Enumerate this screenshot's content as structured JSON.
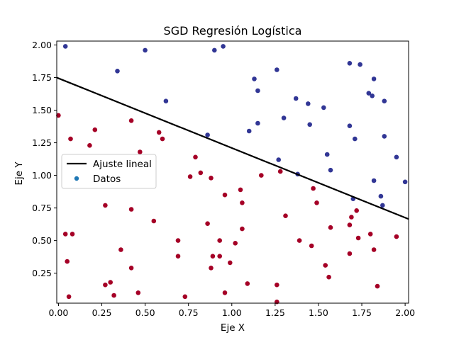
{
  "chart_data": {
    "type": "scatter",
    "title": "SGD Regresión Logística",
    "xlabel": "Eje X",
    "ylabel": "Eje Y",
    "xlim": [
      -0.01,
      2.02
    ],
    "ylim": [
      0.02,
      2.03
    ],
    "xticks": [
      "0.00",
      "0.25",
      "0.50",
      "0.75",
      "1.00",
      "1.25",
      "1.50",
      "1.75",
      "2.00"
    ],
    "yticks": [
      "0.25",
      "0.50",
      "0.75",
      "1.00",
      "1.25",
      "1.50",
      "1.75",
      "2.00"
    ],
    "grid": false,
    "legend_position": "center-left",
    "legend": {
      "line_label": "Ajuste lineal",
      "points_label": "Datos"
    },
    "colors": {
      "class_0": "#a50026",
      "class_1": "#313695",
      "fit_line": "#000000",
      "legend_marker": "#1f77b4"
    },
    "fit_line": {
      "x": [
        -0.01,
        2.02
      ],
      "y": [
        1.75,
        0.665
      ]
    },
    "series": [
      {
        "class": 0,
        "points": [
          [
            0.0,
            1.46
          ],
          [
            0.07,
            1.28
          ],
          [
            0.21,
            1.35
          ],
          [
            0.18,
            1.23
          ],
          [
            0.42,
            1.42
          ],
          [
            0.58,
            1.33
          ],
          [
            0.6,
            1.28
          ],
          [
            0.47,
            1.18
          ],
          [
            0.79,
            1.14
          ],
          [
            0.82,
            1.02
          ],
          [
            0.76,
            0.99
          ],
          [
            0.88,
            0.98
          ],
          [
            1.17,
            1.0
          ],
          [
            1.28,
            1.03
          ],
          [
            0.96,
            0.85
          ],
          [
            1.05,
            0.89
          ],
          [
            1.06,
            0.79
          ],
          [
            1.47,
            0.9
          ],
          [
            1.49,
            0.79
          ],
          [
            0.27,
            0.77
          ],
          [
            0.42,
            0.74
          ],
          [
            0.04,
            0.55
          ],
          [
            0.08,
            0.55
          ],
          [
            0.55,
            0.65
          ],
          [
            0.86,
            0.63
          ],
          [
            1.06,
            0.59
          ],
          [
            1.31,
            0.69
          ],
          [
            1.57,
            0.6
          ],
          [
            1.68,
            0.62
          ],
          [
            1.69,
            0.68
          ],
          [
            1.72,
            0.73
          ],
          [
            1.73,
            0.52
          ],
          [
            1.8,
            0.55
          ],
          [
            1.95,
            0.53
          ],
          [
            0.69,
            0.5
          ],
          [
            0.93,
            0.5
          ],
          [
            1.02,
            0.48
          ],
          [
            1.39,
            0.5
          ],
          [
            1.46,
            0.46
          ],
          [
            0.36,
            0.43
          ],
          [
            0.69,
            0.38
          ],
          [
            0.89,
            0.38
          ],
          [
            0.93,
            0.38
          ],
          [
            1.68,
            0.4
          ],
          [
            1.82,
            0.43
          ],
          [
            0.05,
            0.34
          ],
          [
            0.42,
            0.29
          ],
          [
            0.88,
            0.29
          ],
          [
            0.99,
            0.33
          ],
          [
            1.54,
            0.31
          ],
          [
            1.56,
            0.22
          ],
          [
            0.27,
            0.16
          ],
          [
            0.3,
            0.18
          ],
          [
            1.09,
            0.17
          ],
          [
            1.26,
            0.16
          ],
          [
            1.84,
            0.15
          ],
          [
            0.06,
            0.07
          ],
          [
            0.32,
            0.08
          ],
          [
            0.46,
            0.1
          ],
          [
            0.73,
            0.07
          ],
          [
            0.96,
            0.1
          ],
          [
            1.26,
            0.03
          ]
        ]
      },
      {
        "class": 1,
        "points": [
          [
            0.04,
            1.99
          ],
          [
            0.5,
            1.96
          ],
          [
            0.9,
            1.96
          ],
          [
            0.95,
            1.99
          ],
          [
            0.34,
            1.8
          ],
          [
            1.26,
            1.81
          ],
          [
            1.13,
            1.74
          ],
          [
            1.68,
            1.86
          ],
          [
            1.74,
            1.85
          ],
          [
            1.82,
            1.74
          ],
          [
            1.15,
            1.65
          ],
          [
            1.37,
            1.59
          ],
          [
            1.44,
            1.55
          ],
          [
            1.53,
            1.52
          ],
          [
            0.62,
            1.57
          ],
          [
            1.79,
            1.63
          ],
          [
            1.81,
            1.61
          ],
          [
            1.88,
            1.57
          ],
          [
            1.3,
            1.44
          ],
          [
            1.15,
            1.4
          ],
          [
            1.45,
            1.39
          ],
          [
            1.68,
            1.38
          ],
          [
            1.1,
            1.34
          ],
          [
            0.86,
            1.31
          ],
          [
            1.71,
            1.28
          ],
          [
            1.88,
            1.3
          ],
          [
            1.27,
            1.12
          ],
          [
            1.55,
            1.16
          ],
          [
            1.95,
            1.14
          ],
          [
            1.38,
            1.01
          ],
          [
            1.57,
            1.04
          ],
          [
            1.82,
            0.96
          ],
          [
            2.0,
            0.95
          ],
          [
            1.7,
            0.82
          ],
          [
            1.86,
            0.84
          ],
          [
            1.87,
            0.77
          ]
        ]
      }
    ]
  }
}
